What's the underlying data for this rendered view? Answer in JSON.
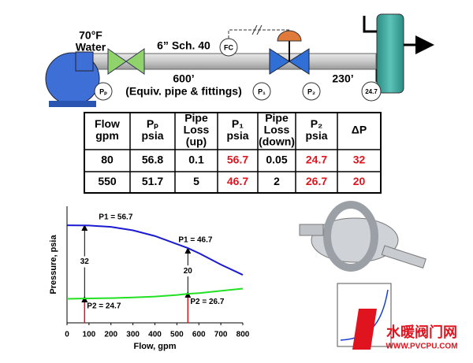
{
  "diagram": {
    "temperature": "70°F",
    "fluid": "Water",
    "pipe_spec": "6” Sch. 40",
    "pipe_length_up": "600’",
    "pipe_note": "(Equiv. pipe & fittings)",
    "pipe_length_down": "230’",
    "instruments": {
      "pp": "Pₚ",
      "fc": "FC",
      "p1": "P₁",
      "p2": "P₂",
      "outlet": "24.7"
    }
  },
  "table": {
    "header": [
      [
        "Flow",
        "gpm"
      ],
      [
        "Pₚ",
        "psia"
      ],
      [
        "Pipe",
        "Loss",
        "(up)"
      ],
      [
        "P₁",
        "psia"
      ],
      [
        "Pipe",
        "Loss",
        "(down)"
      ],
      [
        "P₂",
        "psia"
      ],
      [
        "ΔP"
      ]
    ],
    "highlight_color": "#e0141e",
    "highlight_columns": [
      3,
      5,
      6
    ],
    "rows": [
      [
        80,
        56.8,
        0.1,
        56.7,
        0.05,
        24.7,
        32
      ],
      [
        550,
        51.7,
        5,
        46.7,
        2,
        26.7,
        20
      ]
    ]
  },
  "chart_data": {
    "type": "line",
    "x_label": "Flow, gpm",
    "y_label": "Pressure, psia",
    "x": [
      0,
      100,
      200,
      300,
      400,
      500,
      550,
      600,
      700,
      800
    ],
    "series": [
      {
        "name": "P1",
        "color": "#1a1ad0",
        "values": [
          56.7,
          56.6,
          56,
          54.5,
          52,
          48.5,
          46.7,
          44.5,
          39.5,
          35
        ]
      },
      {
        "name": "P2",
        "color": "#22e022",
        "values": [
          24.5,
          24.7,
          24.8,
          25.1,
          25.5,
          26.2,
          26.7,
          27,
          28,
          29
        ]
      }
    ],
    "xlim": [
      0,
      800
    ],
    "xticks": [
      0,
      100,
      200,
      300,
      400,
      500,
      600,
      700,
      800
    ],
    "ylim": [
      14,
      65
    ],
    "annotations": [
      {
        "x": 80,
        "p1": 56.7,
        "p2": 24.7,
        "dp": 32,
        "p1_label": "P1 = 56.7",
        "p2_label": "P2 = 24.7"
      },
      {
        "x": 550,
        "p1": 46.7,
        "p2": 26.7,
        "dp": 20,
        "p1_label": "P1 = 46.7",
        "p2_label": "P2 = 26.7"
      }
    ],
    "marker_color": "#e0141e"
  },
  "watermark": {
    "name": "水暖阀门网",
    "url": "WWW.PVCPU.COM"
  }
}
